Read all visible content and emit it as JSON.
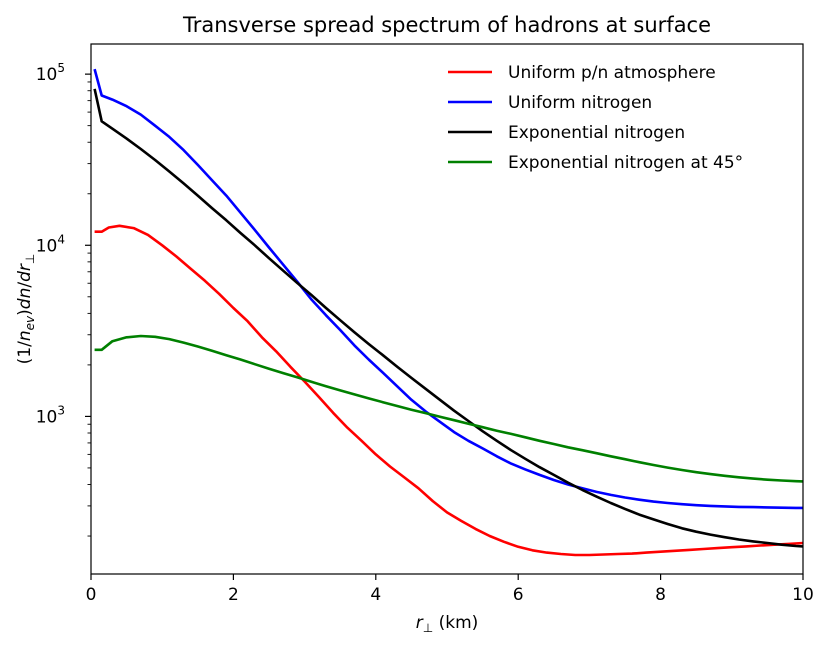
{
  "chart_data": {
    "type": "line",
    "title": "Transverse spread spectrum of hadrons at surface",
    "xlabel": "r",
    "xlabel_sub": "⊥",
    "xlabel_unit": " (km)",
    "ylabel_parts": {
      "a": "(1/",
      "n": "n",
      "ev": "ev",
      "b": ")",
      "dn": "dn",
      "slash": "/",
      "dr": "dr",
      "perp": "⊥"
    },
    "xlim": [
      0,
      10
    ],
    "ylim": [
      120,
      150000
    ],
    "yscale": "log",
    "grid": false,
    "legend_position": "top-right",
    "x_ticks": [
      "0",
      "2",
      "4",
      "6",
      "8",
      "10"
    ],
    "y_ticks": [
      {
        "base": "10",
        "exp": "3"
      },
      {
        "base": "10",
        "exp": "4"
      },
      {
        "base": "10",
        "exp": "5"
      }
    ],
    "series": [
      {
        "name": "Uniform p/n atmosphere",
        "color": "#ff0000",
        "points": [
          [
            0.05,
            12000
          ],
          [
            0.15,
            12000
          ],
          [
            0.25,
            12700
          ],
          [
            0.4,
            13000
          ],
          [
            0.6,
            12600
          ],
          [
            0.8,
            11500
          ],
          [
            1.0,
            10000
          ],
          [
            1.2,
            8600
          ],
          [
            1.4,
            7300
          ],
          [
            1.6,
            6200
          ],
          [
            1.8,
            5200
          ],
          [
            2.0,
            4300
          ],
          [
            2.2,
            3600
          ],
          [
            2.4,
            2900
          ],
          [
            2.6,
            2400
          ],
          [
            2.8,
            1950
          ],
          [
            3.0,
            1600
          ],
          [
            3.2,
            1300
          ],
          [
            3.4,
            1050
          ],
          [
            3.6,
            860
          ],
          [
            3.8,
            720
          ],
          [
            4.0,
            600
          ],
          [
            4.2,
            510
          ],
          [
            4.4,
            440
          ],
          [
            4.6,
            380
          ],
          [
            4.8,
            320
          ],
          [
            5.0,
            275
          ],
          [
            5.2,
            245
          ],
          [
            5.4,
            220
          ],
          [
            5.6,
            200
          ],
          [
            5.8,
            185
          ],
          [
            6.0,
            173
          ],
          [
            6.2,
            165
          ],
          [
            6.4,
            160
          ],
          [
            6.6,
            157
          ],
          [
            6.8,
            155
          ],
          [
            7.0,
            155
          ],
          [
            7.2,
            156
          ],
          [
            7.4,
            157
          ],
          [
            7.6,
            158
          ],
          [
            7.8,
            160
          ],
          [
            8.0,
            162
          ],
          [
            8.2,
            164
          ],
          [
            8.4,
            166
          ],
          [
            8.6,
            168
          ],
          [
            8.8,
            170
          ],
          [
            9.0,
            172
          ],
          [
            9.2,
            174
          ],
          [
            9.4,
            176
          ],
          [
            9.6,
            178
          ],
          [
            9.8,
            180
          ],
          [
            10.0,
            182
          ]
        ]
      },
      {
        "name": "Uniform nitrogen",
        "color": "#0000ff",
        "points": [
          [
            0.05,
            107000
          ],
          [
            0.15,
            75000
          ],
          [
            0.3,
            71000
          ],
          [
            0.5,
            65000
          ],
          [
            0.7,
            58000
          ],
          [
            0.9,
            50000
          ],
          [
            1.1,
            43000
          ],
          [
            1.3,
            36000
          ],
          [
            1.5,
            29500
          ],
          [
            1.7,
            24000
          ],
          [
            1.9,
            19500
          ],
          [
            2.1,
            15500
          ],
          [
            2.3,
            12300
          ],
          [
            2.5,
            9700
          ],
          [
            2.7,
            7700
          ],
          [
            2.9,
            6100
          ],
          [
            3.1,
            4800
          ],
          [
            3.3,
            3900
          ],
          [
            3.5,
            3200
          ],
          [
            3.7,
            2600
          ],
          [
            3.9,
            2150
          ],
          [
            4.1,
            1800
          ],
          [
            4.3,
            1500
          ],
          [
            4.5,
            1250
          ],
          [
            4.7,
            1070
          ],
          [
            4.9,
            930
          ],
          [
            5.1,
            810
          ],
          [
            5.3,
            720
          ],
          [
            5.5,
            650
          ],
          [
            5.7,
            585
          ],
          [
            5.9,
            530
          ],
          [
            6.1,
            490
          ],
          [
            6.3,
            455
          ],
          [
            6.5,
            425
          ],
          [
            6.7,
            400
          ],
          [
            6.9,
            380
          ],
          [
            7.1,
            362
          ],
          [
            7.3,
            348
          ],
          [
            7.5,
            336
          ],
          [
            7.7,
            326
          ],
          [
            7.9,
            318
          ],
          [
            8.1,
            312
          ],
          [
            8.3,
            307
          ],
          [
            8.5,
            303
          ],
          [
            8.7,
            300
          ],
          [
            8.9,
            298
          ],
          [
            9.1,
            296
          ],
          [
            9.3,
            295
          ],
          [
            9.5,
            294
          ],
          [
            9.7,
            293
          ],
          [
            9.9,
            292
          ],
          [
            10.0,
            292
          ]
        ]
      },
      {
        "name": "Exponential nitrogen",
        "color": "#000000",
        "points": [
          [
            0.05,
            82000
          ],
          [
            0.15,
            53000
          ],
          [
            0.3,
            48000
          ],
          [
            0.5,
            42000
          ],
          [
            0.7,
            36500
          ],
          [
            0.9,
            31500
          ],
          [
            1.1,
            27000
          ],
          [
            1.3,
            23000
          ],
          [
            1.5,
            19500
          ],
          [
            1.7,
            16500
          ],
          [
            1.9,
            14000
          ],
          [
            2.1,
            11800
          ],
          [
            2.3,
            10000
          ],
          [
            2.5,
            8400
          ],
          [
            2.7,
            7100
          ],
          [
            2.9,
            6000
          ],
          [
            3.1,
            5100
          ],
          [
            3.3,
            4300
          ],
          [
            3.5,
            3650
          ],
          [
            3.7,
            3100
          ],
          [
            3.9,
            2650
          ],
          [
            4.1,
            2280
          ],
          [
            4.3,
            1950
          ],
          [
            4.5,
            1680
          ],
          [
            4.7,
            1450
          ],
          [
            4.9,
            1250
          ],
          [
            5.1,
            1080
          ],
          [
            5.3,
            940
          ],
          [
            5.5,
            820
          ],
          [
            5.7,
            720
          ],
          [
            5.9,
            635
          ],
          [
            6.1,
            565
          ],
          [
            6.3,
            505
          ],
          [
            6.5,
            455
          ],
          [
            6.7,
            410
          ],
          [
            6.9,
            372
          ],
          [
            7.1,
            340
          ],
          [
            7.3,
            312
          ],
          [
            7.5,
            288
          ],
          [
            7.7,
            267
          ],
          [
            7.9,
            250
          ],
          [
            8.1,
            235
          ],
          [
            8.3,
            222
          ],
          [
            8.5,
            212
          ],
          [
            8.7,
            204
          ],
          [
            8.9,
            197
          ],
          [
            9.1,
            191
          ],
          [
            9.3,
            186
          ],
          [
            9.5,
            182
          ],
          [
            9.7,
            178
          ],
          [
            9.9,
            175
          ],
          [
            10.0,
            174
          ]
        ]
      },
      {
        "name": "Exponential nitrogen at 45°",
        "color": "#008000",
        "points": [
          [
            0.05,
            2450
          ],
          [
            0.15,
            2450
          ],
          [
            0.3,
            2750
          ],
          [
            0.5,
            2900
          ],
          [
            0.7,
            2950
          ],
          [
            0.9,
            2920
          ],
          [
            1.1,
            2830
          ],
          [
            1.3,
            2700
          ],
          [
            1.5,
            2560
          ],
          [
            1.7,
            2420
          ],
          [
            1.9,
            2280
          ],
          [
            2.1,
            2150
          ],
          [
            2.3,
            2020
          ],
          [
            2.5,
            1900
          ],
          [
            2.7,
            1790
          ],
          [
            2.9,
            1690
          ],
          [
            3.1,
            1590
          ],
          [
            3.3,
            1500
          ],
          [
            3.5,
            1420
          ],
          [
            3.7,
            1345
          ],
          [
            3.9,
            1275
          ],
          [
            4.1,
            1210
          ],
          [
            4.3,
            1150
          ],
          [
            4.5,
            1095
          ],
          [
            4.7,
            1045
          ],
          [
            4.9,
            995
          ],
          [
            5.1,
            950
          ],
          [
            5.3,
            905
          ],
          [
            5.5,
            865
          ],
          [
            5.7,
            825
          ],
          [
            5.9,
            790
          ],
          [
            6.1,
            755
          ],
          [
            6.3,
            720
          ],
          [
            6.5,
            690
          ],
          [
            6.7,
            660
          ],
          [
            6.9,
            635
          ],
          [
            7.1,
            610
          ],
          [
            7.3,
            585
          ],
          [
            7.5,
            562
          ],
          [
            7.7,
            540
          ],
          [
            7.9,
            520
          ],
          [
            8.1,
            502
          ],
          [
            8.3,
            486
          ],
          [
            8.5,
            472
          ],
          [
            8.7,
            460
          ],
          [
            8.9,
            450
          ],
          [
            9.1,
            441
          ],
          [
            9.3,
            433
          ],
          [
            9.5,
            427
          ],
          [
            9.7,
            422
          ],
          [
            9.9,
            418
          ],
          [
            10.0,
            417
          ]
        ]
      }
    ]
  }
}
